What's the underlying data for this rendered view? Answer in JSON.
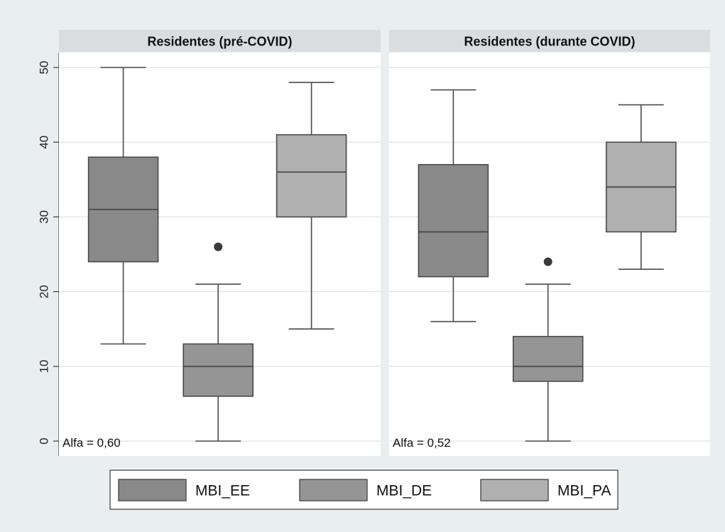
{
  "chart_data": {
    "type": "box",
    "ylim": [
      0,
      50
    ],
    "yticks": [
      0,
      10,
      20,
      30,
      40,
      50
    ],
    "grid": true,
    "legend_position": "bottom",
    "colors": {
      "background": "#e9eef1",
      "plot_bg": "#ffffff",
      "strip": "#dadddf",
      "grid": "#e6e6e6",
      "MBI_EE": "#898989",
      "MBI_DE": "#959595",
      "MBI_PA": "#b0b0b0",
      "line": "#4a4a4a",
      "outlier": "#3a3a3a"
    },
    "legend": [
      "MBI_EE",
      "MBI_DE",
      "MBI_PA"
    ],
    "panels": [
      {
        "title": "Residentes (pré-COVID)",
        "annotation": "Alfa = 0,60",
        "boxes": [
          {
            "series": "MBI_EE",
            "min": 13,
            "q1": 24,
            "median": 31,
            "q3": 38,
            "max": 50,
            "outliers": []
          },
          {
            "series": "MBI_DE",
            "min": 0,
            "q1": 6,
            "median": 10,
            "q3": 13,
            "max": 21,
            "outliers": [
              26
            ]
          },
          {
            "series": "MBI_PA",
            "min": 15,
            "q1": 30,
            "median": 36,
            "q3": 41,
            "max": 48,
            "outliers": []
          }
        ]
      },
      {
        "title": "Residentes (durante COVID)",
        "annotation": "Alfa = 0,52",
        "boxes": [
          {
            "series": "MBI_EE",
            "min": 16,
            "q1": 22,
            "median": 28,
            "q3": 37,
            "max": 47,
            "outliers": []
          },
          {
            "series": "MBI_DE",
            "min": 0,
            "q1": 8,
            "median": 10,
            "q3": 14,
            "max": 21,
            "outliers": [
              24
            ]
          },
          {
            "series": "MBI_PA",
            "min": 23,
            "q1": 28,
            "median": 34,
            "q3": 40,
            "max": 45,
            "outliers": []
          }
        ]
      }
    ]
  }
}
